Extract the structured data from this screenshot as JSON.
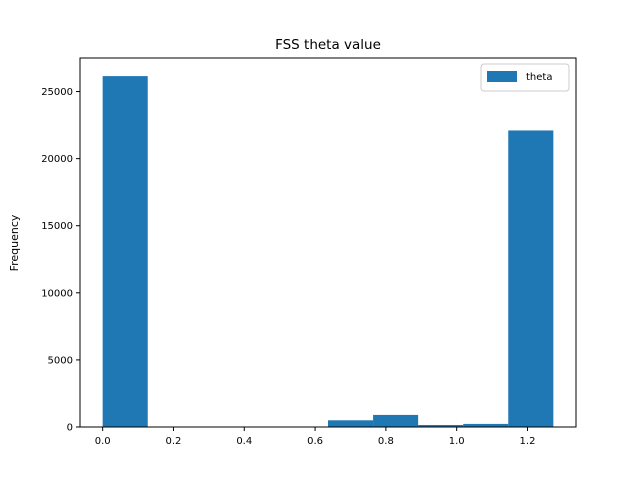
{
  "chart_data": {
    "type": "bar",
    "title": "FSS theta value",
    "xlabel": "",
    "ylabel": "Frequency",
    "legend": {
      "position": "top-right",
      "entries": [
        "theta"
      ]
    },
    "grid": false,
    "xlim": [
      -0.064,
      1.337
    ],
    "ylim": [
      0,
      27500
    ],
    "x_ticks": [
      0.0,
      0.2,
      0.4,
      0.6,
      0.8,
      1.0,
      1.2
    ],
    "x_tick_labels": [
      "0.0",
      "0.2",
      "0.4",
      "0.6",
      "0.8",
      "1.0",
      "1.2"
    ],
    "y_ticks": [
      0,
      5000,
      10000,
      15000,
      20000,
      25000
    ],
    "y_tick_labels": [
      "0",
      "5000",
      "10000",
      "15000",
      "20000",
      "25000"
    ],
    "bin_edges": [
      0.0,
      0.1273,
      0.2546,
      0.3819,
      0.5092,
      0.6365,
      0.7638,
      0.8911,
      1.0184,
      1.1457,
      1.273
    ],
    "series": [
      {
        "name": "theta",
        "color": "#1f77b4",
        "values": [
          26150,
          0,
          0,
          0,
          0,
          500,
          900,
          150,
          230,
          22100
        ]
      }
    ]
  }
}
